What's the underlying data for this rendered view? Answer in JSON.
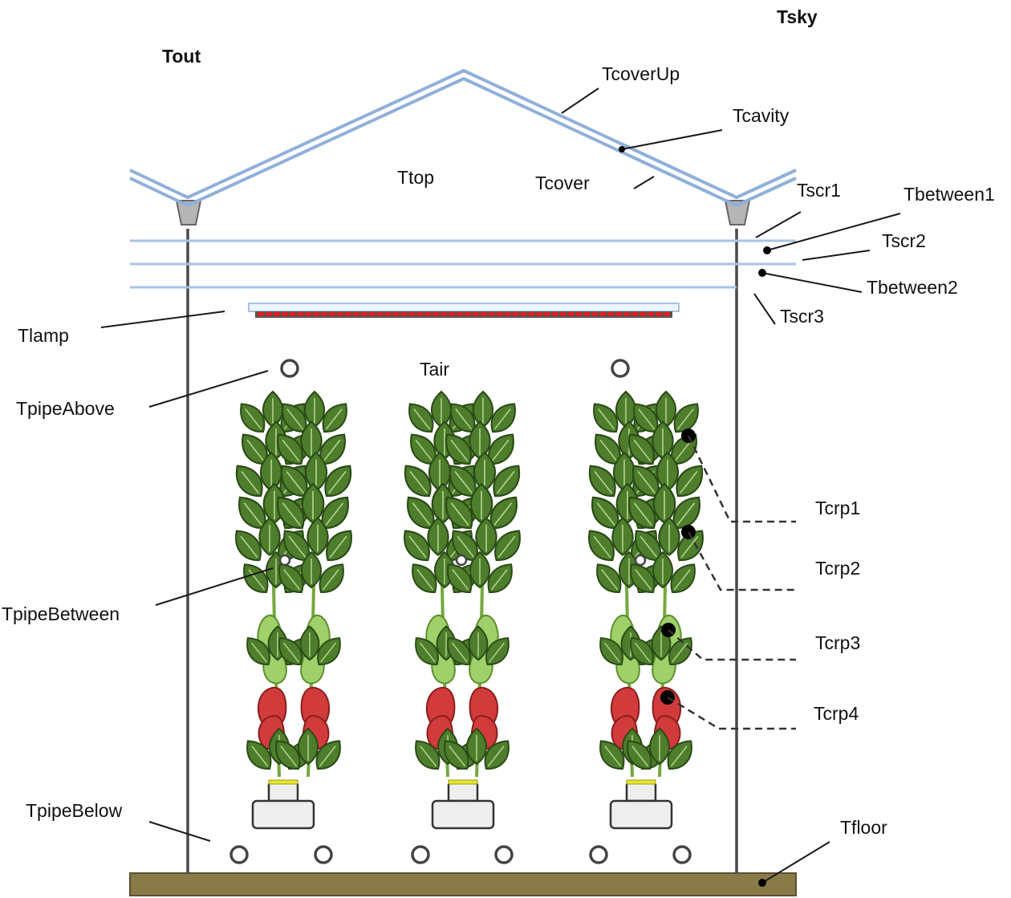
{
  "labels": {
    "tout": "Tout",
    "tsky": "Tsky",
    "tcoverup": "TcoverUp",
    "tcavity": "Tcavity",
    "ttop": "Ttop",
    "tcover": "Tcover",
    "tscr1": "Tscr1",
    "tbetween1": "Tbetween1",
    "tscr2": "Tscr2",
    "tbetween2": "Tbetween2",
    "tscr3": "Tscr3",
    "tlamp": "Tlamp",
    "tair": "Tair",
    "tpipeabove": "TpipeAbove",
    "tpipebetween": "TpipeBetween",
    "tpipebelow": "TpipeBelow",
    "tfloor": "Tfloor",
    "tcrp1": "Tcrp1",
    "tcrp2": "Tcrp2",
    "tcrp3": "Tcrp3",
    "tcrp4": "Tcrp4"
  },
  "colors": {
    "roof": "#8fb0d9",
    "screens": "#a9c3e3",
    "lamp_leds": "#e02020",
    "floor": "#8a7a48",
    "foliage": "#4e7e2c",
    "fruit_ripe": "#d23b3b",
    "fruit_unripe": "#9fd06a"
  }
}
